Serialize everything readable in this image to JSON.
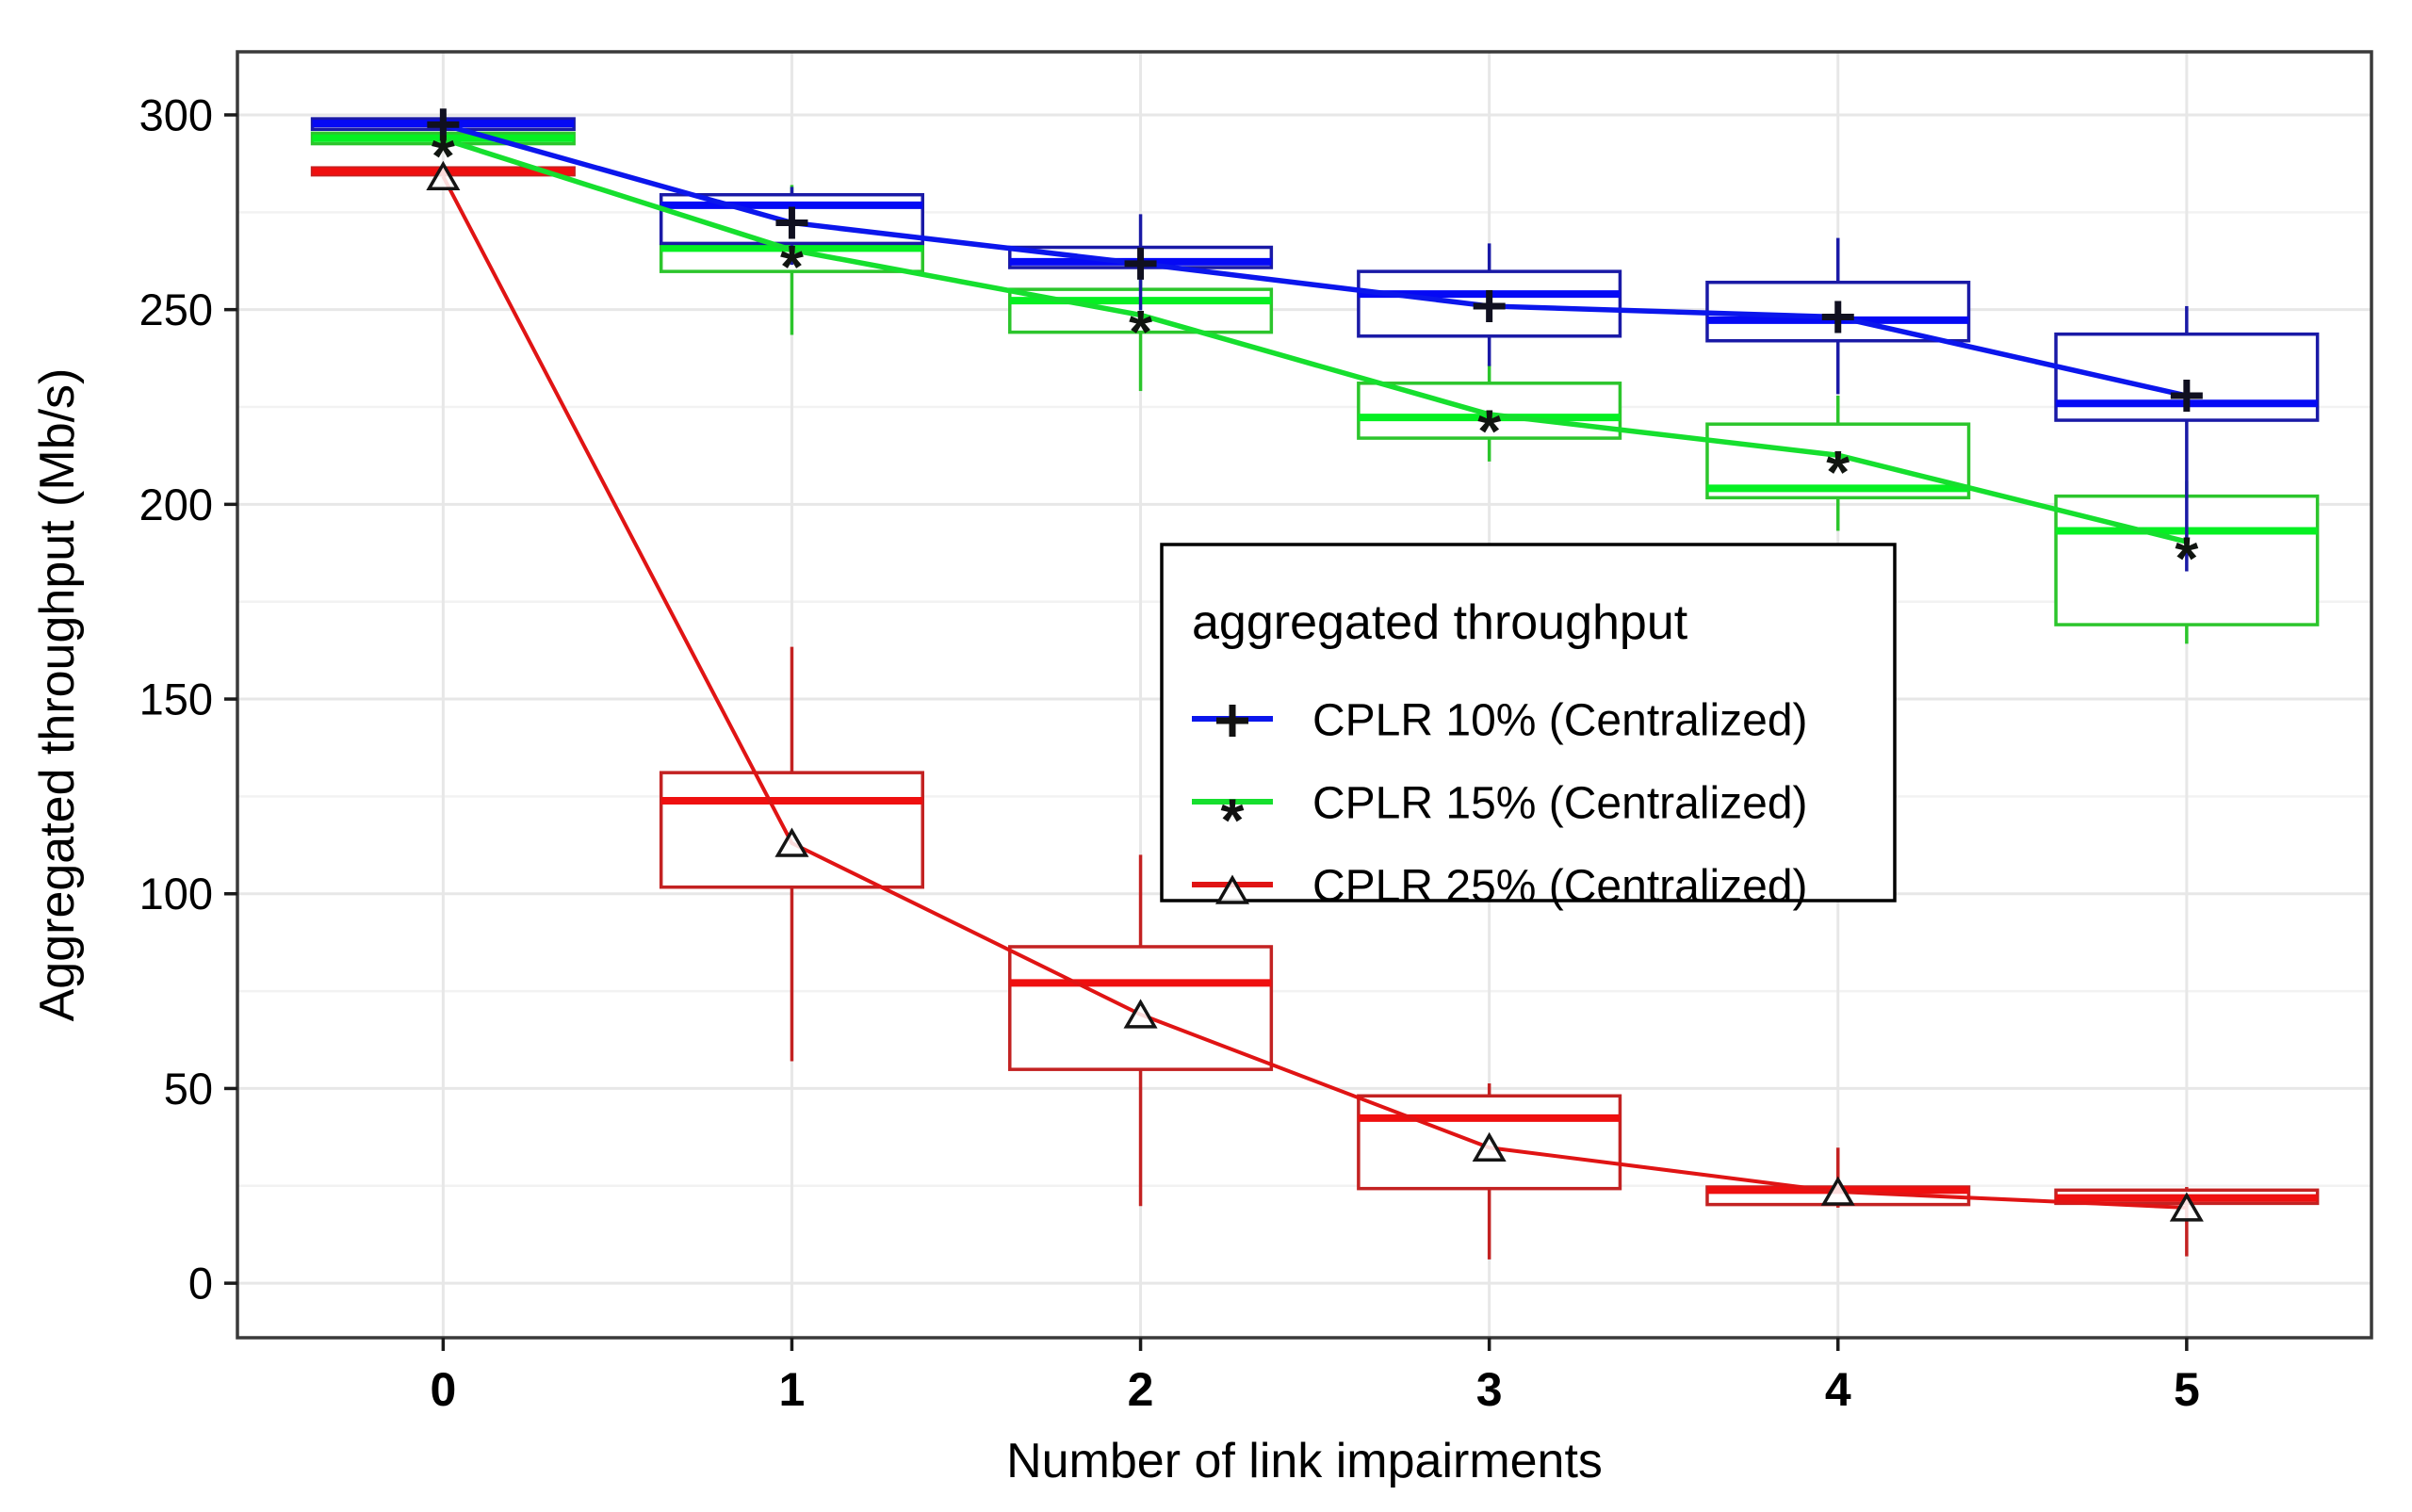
{
  "figure": {
    "background": "#ffffff",
    "panel_border_color": "#3a3a3a",
    "grid_major_color": "#e7e7e7",
    "grid_minor_color": "#f2f2f2",
    "text_color": "#000000",
    "tick_color": "#1a1a1a"
  },
  "chart_data": {
    "type": "boxplot-line-combo",
    "title": "",
    "xlabel": "Number of link impairments",
    "ylabel": "Aggregated throughput (Mb/s)",
    "x_ticks": [
      0,
      1,
      2,
      3,
      4,
      5
    ],
    "x_tick_labels": [
      "0",
      "1",
      "2",
      "3",
      "4",
      "5"
    ],
    "y_ticks": [
      0,
      50,
      100,
      150,
      200,
      250,
      300
    ],
    "y_tick_labels": [
      "0",
      "50",
      "100",
      "150",
      "200",
      "250",
      "300"
    ],
    "y_minor_ticks": [
      25,
      75,
      125,
      175,
      225,
      275
    ],
    "xlim": [
      -0.59,
      5.53
    ],
    "ylim": [
      -14,
      316.2
    ],
    "grid": true,
    "box_width": 0.75,
    "legend": {
      "title": "aggregated throughput",
      "position": "center-right",
      "border_color": "#000000",
      "background": "#ffffff",
      "items": [
        {
          "label": "CPLR 10% (Centralized)",
          "color": "#0b16ec",
          "marker": "plus"
        },
        {
          "label": "CPLR 15% (Centralized)",
          "color": "#16df2e",
          "marker": "asterisk"
        },
        {
          "label": "CPLR 25% (Centralized)",
          "color": "#e01414",
          "marker": "triangle"
        }
      ]
    },
    "series": [
      {
        "name": "CPLR 10% (Centralized)",
        "line_color": "#0b16ec",
        "box_color": "#1a1aa6",
        "median_color": "#0509f5",
        "marker": "plus",
        "marker_color": "#101020",
        "x": [
          0,
          1,
          2,
          3,
          4,
          5
        ],
        "means": [
          297.5,
          272.3,
          261.8,
          250.9,
          248.1,
          227.9
        ],
        "boxes": [
          {
            "lo": 296.3,
            "q1": 296.3,
            "med": 297.8,
            "q3": 299.0,
            "hi": 299.0
          },
          {
            "lo": 261.5,
            "q1": 267.0,
            "med": 276.8,
            "q3": 279.5,
            "hi": 281.5
          },
          {
            "lo": 249.8,
            "q1": 260.8,
            "med": 262.3,
            "q3": 266.0,
            "hi": 274.5
          },
          {
            "lo": 235.5,
            "q1": 243.2,
            "med": 254.0,
            "q3": 259.8,
            "hi": 267.0
          },
          {
            "lo": 228.3,
            "q1": 242.0,
            "med": 247.3,
            "q3": 257.0,
            "hi": 268.4
          },
          {
            "lo": 182.8,
            "q1": 221.6,
            "med": 225.9,
            "q3": 243.7,
            "hi": 250.9
          }
        ]
      },
      {
        "name": "CPLR 15% (Centralized)",
        "line_color": "#16df2e",
        "box_color": "#2cc52c",
        "median_color": "#05f022",
        "marker": "asterisk",
        "marker_color": "#101510",
        "x": [
          0,
          1,
          2,
          3,
          4,
          5
        ],
        "means": [
          293.8,
          265.3,
          248.6,
          223.1,
          212.6,
          190.4
        ],
        "boxes": [
          {
            "lo": 292.6,
            "q1": 292.6,
            "med": 294.0,
            "q3": 295.3,
            "hi": 295.3
          },
          {
            "lo": 243.5,
            "q1": 259.8,
            "med": 265.8,
            "q3": 266.5,
            "hi": 282.0
          },
          {
            "lo": 229.1,
            "q1": 244.2,
            "med": 252.3,
            "q3": 255.2,
            "hi": 259.2
          },
          {
            "lo": 211.0,
            "q1": 217.0,
            "med": 222.3,
            "q3": 231.1,
            "hi": 236.0
          },
          {
            "lo": 193.2,
            "q1": 201.7,
            "med": 204.1,
            "q3": 220.6,
            "hi": 227.9
          },
          {
            "lo": 164.2,
            "q1": 169.1,
            "med": 193.2,
            "q3": 202.1,
            "hi": 206.0
          }
        ]
      },
      {
        "name": "CPLR 25% (Centralized)",
        "line_color": "#e01414",
        "box_color": "#c32222",
        "median_color": "#ef0f0f",
        "marker": "triangle",
        "marker_color": "#151515",
        "x": [
          0,
          1,
          2,
          3,
          4,
          5
        ],
        "means": [
          284.2,
          113.0,
          69.0,
          34.8,
          23.5,
          19.4
        ],
        "boxes": [
          {
            "lo": 284.6,
            "q1": 284.6,
            "med": 285.5,
            "q3": 286.4,
            "hi": 286.4
          },
          {
            "lo": 57.0,
            "q1": 101.7,
            "med": 123.9,
            "q3": 131.1,
            "hi": 163.4
          },
          {
            "lo": 19.8,
            "q1": 54.9,
            "med": 77.1,
            "q3": 86.4,
            "hi": 110.0
          },
          {
            "lo": 6.1,
            "q1": 24.3,
            "med": 42.4,
            "q3": 48.1,
            "hi": 51.3
          },
          {
            "lo": 19.4,
            "q1": 20.2,
            "med": 23.9,
            "q3": 24.7,
            "hi": 34.8
          },
          {
            "lo": 6.9,
            "q1": 20.5,
            "med": 21.9,
            "q3": 23.9,
            "hi": 24.7
          }
        ]
      }
    ]
  }
}
